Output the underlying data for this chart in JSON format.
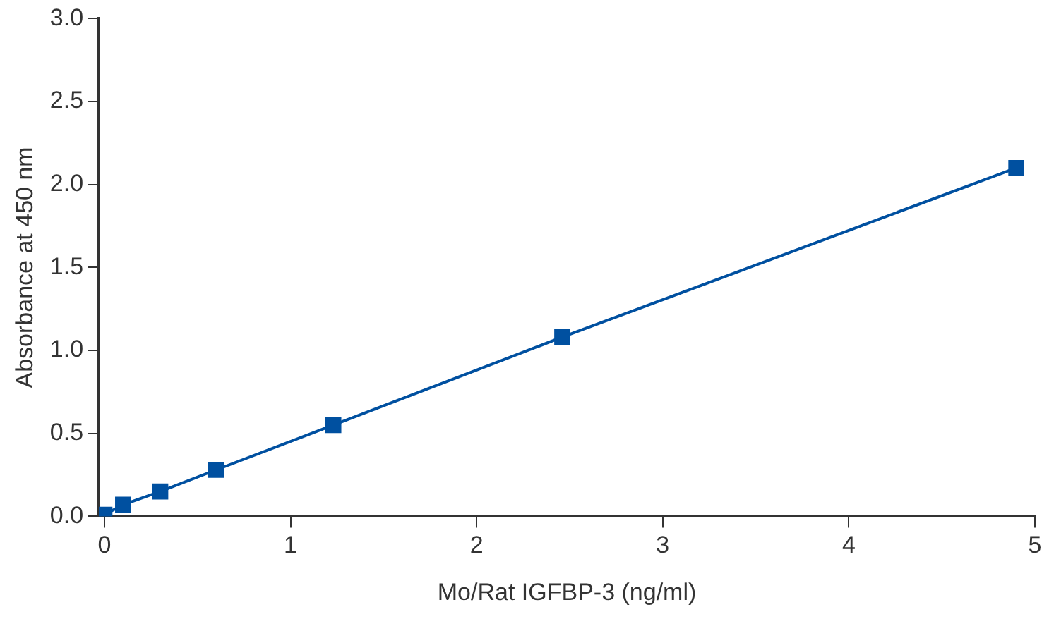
{
  "chart_data": {
    "type": "line",
    "xlabel": "Mo/Rat IGFBP-3 (ng/ml)",
    "ylabel": "Absorbance at 450 nm",
    "x": [
      0,
      0.1,
      0.3,
      0.6,
      1.23,
      2.46,
      4.9
    ],
    "series": [
      {
        "color": "#0050a0",
        "values": [
          0.01,
          0.07,
          0.15,
          0.28,
          0.55,
          1.08,
          2.1
        ]
      }
    ],
    "xlim": [
      -0.03,
      5
    ],
    "xticks": [
      0,
      1,
      2,
      3,
      4,
      5
    ],
    "ylim": [
      0,
      3
    ],
    "yticks": [
      {
        "value": 0,
        "label": "0.0"
      },
      {
        "value": 0.5,
        "label": "0.5"
      },
      {
        "value": 1,
        "label": "1.0"
      },
      {
        "value": 1.5,
        "label": "1.5"
      },
      {
        "value": 2,
        "label": "2.0"
      },
      {
        "value": 2.5,
        "label": "2.5"
      },
      {
        "value": 3,
        "label": "3.0"
      }
    ],
    "marker": "square",
    "line_style": "solid",
    "grid": false,
    "legend": false
  }
}
